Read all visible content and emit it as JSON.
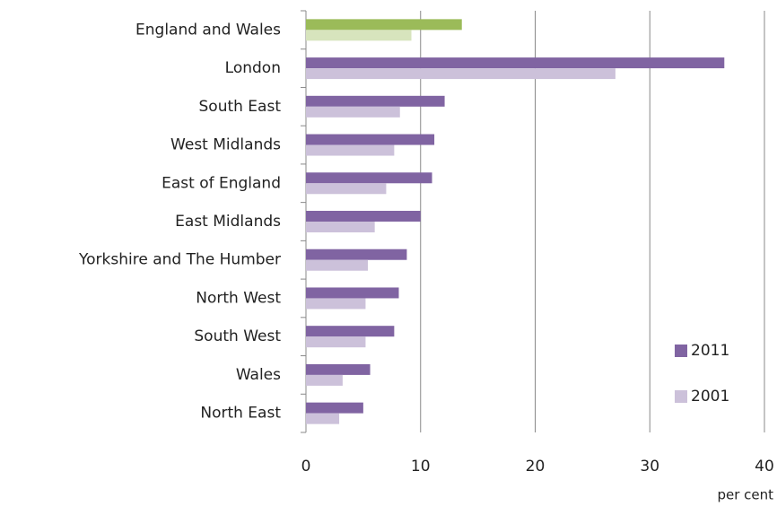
{
  "chart_data": {
    "type": "hbar",
    "x_label": "per cent",
    "categories": [
      "England and Wales",
      "London",
      "South East",
      "West Midlands",
      "East of England",
      "East Midlands",
      "Yorkshire and The Humber",
      "North West",
      "South West",
      "Wales",
      "North East"
    ],
    "series": [
      {
        "name": "2011",
        "color": "#8064a2",
        "colors": [
          "#9bbb59",
          "#8064a2",
          "#8064a2",
          "#8064a2",
          "#8064a2",
          "#8064a2",
          "#8064a2",
          "#8064a2",
          "#8064a2",
          "#8064a2",
          "#8064a2"
        ],
        "values": [
          13.6,
          36.5,
          12.1,
          11.2,
          11.0,
          10.0,
          8.8,
          8.1,
          7.7,
          5.6,
          5.0
        ]
      },
      {
        "name": "2001",
        "color": "#ccc1da",
        "colors": [
          "#d7e4bd",
          "#ccc1da",
          "#ccc1da",
          "#ccc1da",
          "#ccc1da",
          "#ccc1da",
          "#ccc1da",
          "#ccc1da",
          "#ccc1da",
          "#ccc1da",
          "#ccc1da"
        ],
        "values": [
          9.2,
          27.0,
          8.2,
          7.7,
          7.0,
          6.0,
          5.4,
          5.2,
          5.2,
          3.2,
          2.9
        ]
      }
    ],
    "xlim": [
      0,
      40
    ],
    "xticks": [
      0,
      10,
      20,
      30,
      40
    ],
    "grid": true,
    "legend": "bottom-right"
  }
}
